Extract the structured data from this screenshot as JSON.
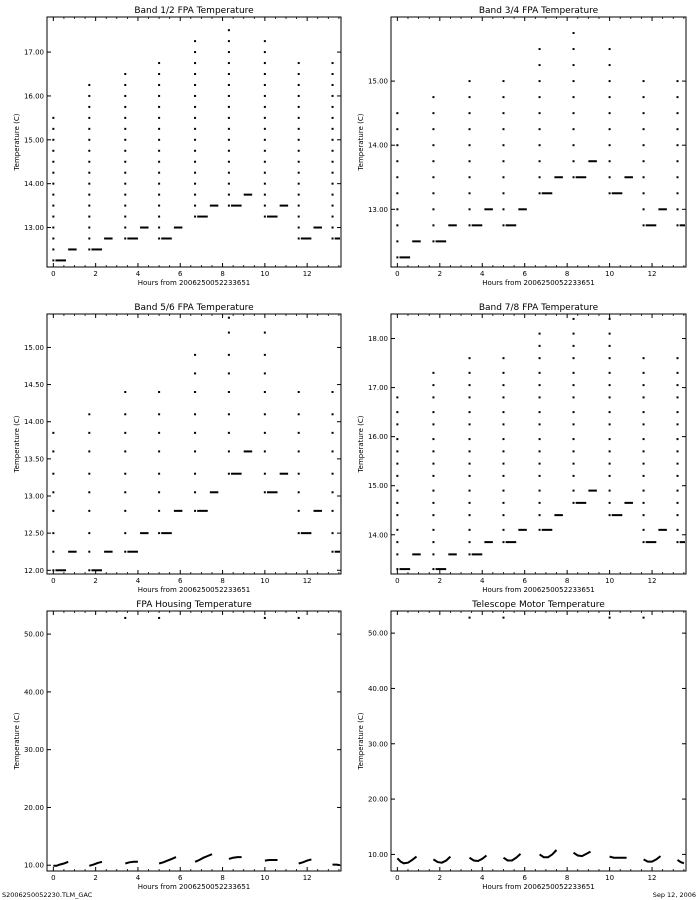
{
  "footer": {
    "left": "S2006250052230.TLM_GAC",
    "right": "Sep 12, 2006"
  },
  "chart_data": [
    {
      "type": "scatter",
      "title": "Band 1/2 FPA Temperature",
      "xlabel": "Hours from 2006250052233651",
      "ylabel": "Temperature (C)",
      "xlim": [
        -0.3,
        13.6
      ],
      "ylim": [
        12.1,
        17.8
      ],
      "xticks": [
        0,
        2,
        4,
        6,
        8,
        10,
        12
      ],
      "yticks": [
        13.0,
        14.0,
        15.0,
        16.0,
        17.0
      ],
      "ytick_labels": [
        "13.00",
        "14.00",
        "15.00",
        "16.00",
        "17.00"
      ],
      "cycle_starts": [
        0.0,
        1.7,
        3.4,
        5.0,
        6.7,
        8.3,
        10.0,
        11.6,
        13.2
      ],
      "cycle_peaks": [
        15.5,
        16.3,
        16.5,
        16.8,
        17.3,
        17.6,
        17.3,
        16.8,
        16.8
      ],
      "cycle_lows": [
        12.25,
        12.5,
        12.75,
        12.75,
        13.25,
        13.5,
        13.25,
        12.75,
        12.75
      ],
      "levels": [
        12.25,
        12.5,
        12.75,
        13.0,
        13.25,
        13.5,
        13.75,
        14.0,
        14.25,
        14.5,
        14.75,
        15.0,
        15.25,
        15.5,
        15.75,
        16.0,
        16.25,
        16.5,
        16.75,
        17.0,
        17.25,
        17.5
      ]
    },
    {
      "type": "scatter",
      "title": "Band 3/4 FPA Temperature",
      "xlabel": "Hours from 2006250052233651",
      "ylabel": "Temperature (C)",
      "xlim": [
        -0.3,
        13.6
      ],
      "ylim": [
        12.1,
        16.0
      ],
      "xticks": [
        0,
        2,
        4,
        6,
        8,
        10,
        12
      ],
      "yticks": [
        13.0,
        14.0,
        15.0
      ],
      "ytick_labels": [
        "13.00",
        "14.00",
        "15.00"
      ],
      "cycle_starts": [
        0.0,
        1.7,
        3.4,
        5.0,
        6.7,
        8.3,
        10.0,
        11.6,
        13.2
      ],
      "cycle_peaks": [
        14.6,
        14.9,
        15.2,
        15.2,
        15.5,
        15.9,
        15.5,
        15.2,
        15.2
      ],
      "cycle_lows": [
        12.25,
        12.5,
        12.75,
        12.75,
        13.25,
        13.5,
        13.25,
        12.75,
        12.75
      ],
      "levels": [
        12.25,
        12.5,
        12.75,
        13.0,
        13.25,
        13.5,
        13.75,
        14.0,
        14.25,
        14.5,
        14.75,
        15.0,
        15.25,
        15.5,
        15.75
      ]
    },
    {
      "type": "scatter",
      "title": "Band 5/6 FPA Temperature",
      "xlabel": "Hours from 2006250052233651",
      "ylabel": "Temperature (C)",
      "xlim": [
        -0.3,
        13.6
      ],
      "ylim": [
        11.95,
        15.45
      ],
      "xticks": [
        0,
        2,
        4,
        6,
        8,
        10,
        12
      ],
      "yticks": [
        12.0,
        12.5,
        13.0,
        13.5,
        14.0,
        14.5,
        15.0
      ],
      "ytick_labels": [
        "12.00",
        "12.50",
        "13.00",
        "13.50",
        "14.00",
        "14.50",
        "15.00"
      ],
      "cycle_starts": [
        0.0,
        1.7,
        3.4,
        5.0,
        6.7,
        8.3,
        10.0,
        11.6,
        13.2
      ],
      "cycle_peaks": [
        13.9,
        14.1,
        14.4,
        14.4,
        14.9,
        15.4,
        15.2,
        14.6,
        14.4
      ],
      "cycle_lows": [
        12.0,
        12.0,
        12.25,
        12.5,
        12.8,
        13.3,
        13.05,
        12.5,
        12.25
      ],
      "levels": [
        12.0,
        12.25,
        12.5,
        12.8,
        13.05,
        13.3,
        13.6,
        13.85,
        14.1,
        14.4,
        14.65,
        14.9,
        15.2,
        15.4
      ]
    },
    {
      "type": "scatter",
      "title": "Band 7/8 FPA Temperature",
      "xlabel": "Hours from 2006250052233651",
      "ylabel": "Temperature (C)",
      "xlim": [
        -0.3,
        13.6
      ],
      "ylim": [
        13.2,
        18.5
      ],
      "xticks": [
        0,
        2,
        4,
        6,
        8,
        10,
        12
      ],
      "yticks": [
        14.0,
        15.0,
        16.0,
        17.0,
        18.0
      ],
      "ytick_labels": [
        "14.00",
        "15.00",
        "16.00",
        "17.00",
        "18.00"
      ],
      "cycle_starts": [
        0.0,
        1.7,
        3.4,
        5.0,
        6.7,
        8.3,
        10.0,
        11.6,
        13.2
      ],
      "cycle_peaks": [
        16.8,
        17.3,
        17.6,
        17.6,
        18.1,
        18.4,
        18.4,
        17.8,
        17.6
      ],
      "cycle_lows": [
        13.3,
        13.3,
        13.6,
        13.85,
        14.1,
        14.65,
        14.4,
        13.85,
        13.85
      ],
      "levels": [
        13.3,
        13.6,
        13.85,
        14.1,
        14.4,
        14.65,
        14.9,
        15.2,
        15.45,
        15.7,
        15.95,
        16.25,
        16.5,
        16.8,
        17.05,
        17.3,
        17.6,
        17.85,
        18.1,
        18.4
      ]
    },
    {
      "type": "line",
      "title": "FPA Housing Temperature",
      "xlabel": "Hours from 2006250052233651",
      "ylabel": "Temperature (C)",
      "xlim": [
        -0.3,
        13.6
      ],
      "ylim": [
        9.0,
        54.0
      ],
      "xticks": [
        0,
        2,
        4,
        6,
        8,
        10,
        12
      ],
      "yticks": [
        10.0,
        20.0,
        30.0,
        40.0,
        50.0
      ],
      "ytick_labels": [
        "10.00",
        "20.00",
        "30.00",
        "40.00",
        "50.00"
      ],
      "segments": [
        {
          "x": [
            0.0,
            0.15,
            0.3,
            0.5,
            0.7
          ],
          "y": [
            9.9,
            9.9,
            10.1,
            10.3,
            10.6
          ]
        },
        {
          "x": [
            1.7,
            1.9,
            2.1,
            2.3
          ],
          "y": [
            9.9,
            10.1,
            10.4,
            10.6
          ]
        },
        {
          "x": [
            3.4,
            3.6,
            3.8,
            4.0
          ],
          "y": [
            10.3,
            10.5,
            10.6,
            10.6
          ]
        },
        {
          "x": [
            5.0,
            5.2,
            5.4,
            5.6,
            5.8
          ],
          "y": [
            10.3,
            10.5,
            10.8,
            11.1,
            11.4
          ]
        },
        {
          "x": [
            6.7,
            6.9,
            7.1,
            7.3,
            7.5
          ],
          "y": [
            10.6,
            10.9,
            11.3,
            11.6,
            11.9
          ]
        },
        {
          "x": [
            8.3,
            8.5,
            8.7,
            8.9
          ],
          "y": [
            11.1,
            11.3,
            11.4,
            11.4
          ]
        },
        {
          "x": [
            10.0,
            10.2,
            10.4,
            10.6
          ],
          "y": [
            10.8,
            10.9,
            10.9,
            10.9
          ]
        },
        {
          "x": [
            11.6,
            11.8,
            12.0,
            12.2
          ],
          "y": [
            10.3,
            10.5,
            10.8,
            11.0
          ]
        },
        {
          "x": [
            13.2,
            13.4,
            13.55
          ],
          "y": [
            10.1,
            10.1,
            10.0
          ]
        }
      ],
      "spikes": [
        {
          "x": 3.4,
          "y": 52.8
        },
        {
          "x": 5.0,
          "y": 52.8
        },
        {
          "x": 10.0,
          "y": 52.8
        },
        {
          "x": 11.6,
          "y": 52.8
        }
      ]
    },
    {
      "type": "line",
      "title": "Telescope Motor Temperature",
      "xlabel": "Hours from 2006250052233651",
      "ylabel": "Temperature (C)",
      "xlim": [
        -0.3,
        13.6
      ],
      "ylim": [
        7.0,
        54.0
      ],
      "xticks": [
        0,
        2,
        4,
        6,
        8,
        10,
        12
      ],
      "yticks": [
        10.0,
        20.0,
        30.0,
        40.0,
        50.0
      ],
      "ytick_labels": [
        "10.00",
        "20.00",
        "30.00",
        "40.00",
        "50.00"
      ],
      "segments": [
        {
          "x": [
            0.0,
            0.15,
            0.3,
            0.5,
            0.7,
            0.9
          ],
          "y": [
            9.3,
            8.7,
            8.4,
            8.5,
            9.0,
            9.6
          ]
        },
        {
          "x": [
            1.7,
            1.9,
            2.1,
            2.3,
            2.5
          ],
          "y": [
            9.1,
            8.6,
            8.5,
            8.9,
            9.6
          ]
        },
        {
          "x": [
            3.4,
            3.6,
            3.8,
            4.0,
            4.2
          ],
          "y": [
            9.4,
            8.9,
            8.8,
            9.2,
            9.8
          ]
        },
        {
          "x": [
            5.0,
            5.2,
            5.4,
            5.6,
            5.8
          ],
          "y": [
            9.4,
            8.9,
            8.9,
            9.4,
            10.1
          ]
        },
        {
          "x": [
            6.7,
            6.9,
            7.1,
            7.3,
            7.5
          ],
          "y": [
            10.0,
            9.5,
            9.5,
            10.0,
            10.8
          ]
        },
        {
          "x": [
            8.3,
            8.5,
            8.7,
            8.9,
            9.1
          ],
          "y": [
            10.3,
            9.8,
            9.7,
            10.1,
            10.5
          ]
        },
        {
          "x": [
            10.0,
            10.2,
            10.5,
            10.8
          ],
          "y": [
            9.6,
            9.4,
            9.4,
            9.4
          ]
        },
        {
          "x": [
            11.6,
            11.8,
            12.0,
            12.2,
            12.4
          ],
          "y": [
            9.1,
            8.7,
            8.7,
            9.1,
            9.7
          ]
        },
        {
          "x": [
            13.2,
            13.35,
            13.5
          ],
          "y": [
            9.0,
            8.6,
            8.4
          ]
        }
      ],
      "spikes": [
        {
          "x": 3.4,
          "y": 52.8
        },
        {
          "x": 5.0,
          "y": 52.8
        },
        {
          "x": 10.0,
          "y": 52.8
        },
        {
          "x": 11.6,
          "y": 52.8
        }
      ]
    }
  ]
}
